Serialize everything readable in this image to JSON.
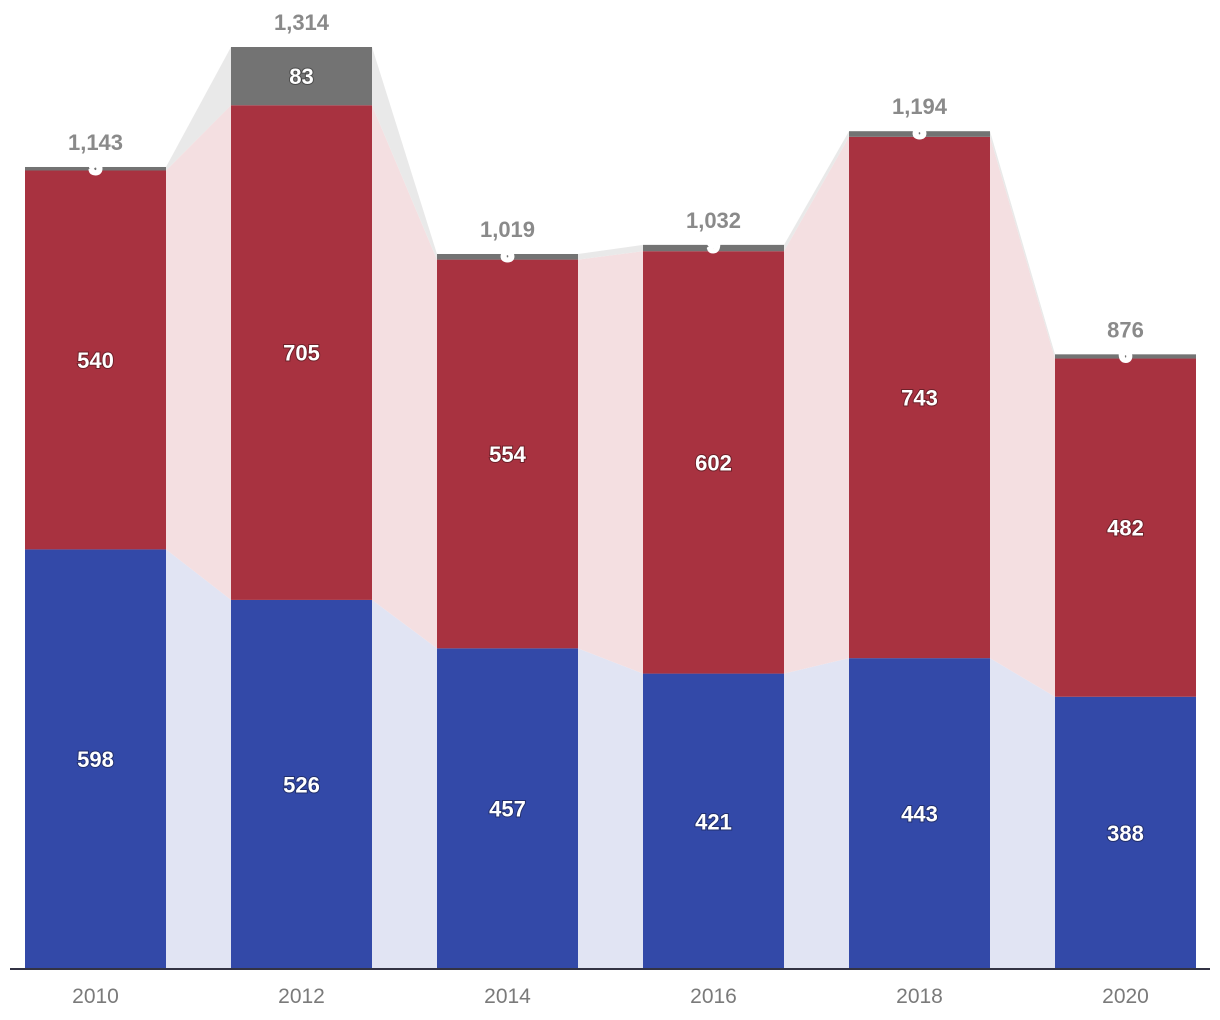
{
  "chart_data": {
    "type": "bar",
    "stacked": true,
    "categories": [
      "2010",
      "2012",
      "2014",
      "2016",
      "2018",
      "2020"
    ],
    "series": [
      {
        "values": [
          598,
          526,
          457,
          421,
          443,
          388
        ],
        "color": "#3349a8",
        "band_color": "#e1e4f3"
      },
      {
        "values": [
          540,
          705,
          554,
          602,
          743,
          482
        ],
        "color": "#a83240",
        "band_color": "#f4dfe1"
      },
      {
        "values": [
          5,
          83,
          8,
          9,
          8,
          6
        ],
        "color": "#737373",
        "band_color": "#e9e9e9"
      }
    ],
    "totals": [
      "1,143",
      "1,314",
      "1,019",
      "1,032",
      "1,194",
      "876"
    ],
    "ylim": [
      0,
      1314
    ],
    "grid": false,
    "legend": "none",
    "axis_color": "#333344"
  }
}
